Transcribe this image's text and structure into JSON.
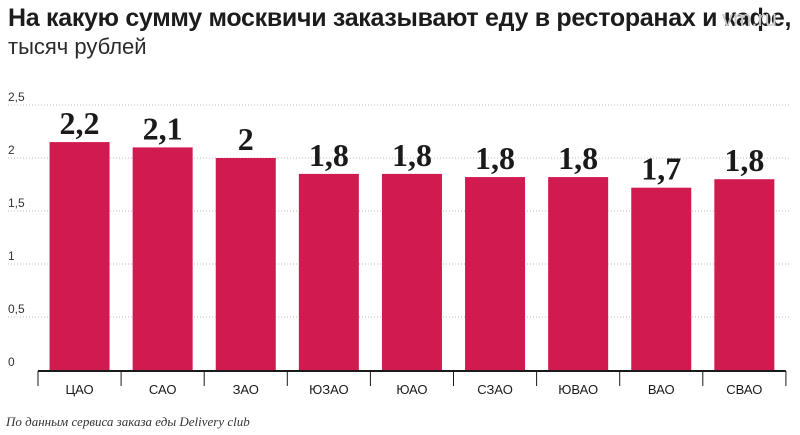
{
  "header": {
    "title": "На какую сумму москвичи заказывают еду в ресторанах и кафе,",
    "subtitle": "тысяч рублей",
    "watermark": "vm.ru"
  },
  "footer": {
    "source": "По данным сервиса заказа еды Delivery club"
  },
  "colors": {
    "bar": "#d11a4f",
    "grid": "#bdbdbd",
    "axis": "#1a1a1a"
  },
  "chart_data": {
    "type": "bar",
    "categories": [
      "ЦАО",
      "САО",
      "ЗАО",
      "ЮЗАО",
      "ЮАО",
      "СЗАО",
      "ЮВАО",
      "ВАО",
      "СВАО"
    ],
    "values": [
      2.2,
      2.1,
      2,
      1.8,
      1.8,
      1.8,
      1.8,
      1.7,
      1.8
    ],
    "value_labels": [
      "2,2",
      "2,1",
      "2",
      "1,8",
      "1,8",
      "1,8",
      "1,8",
      "1,7",
      "1,8"
    ],
    "plotted_values": [
      2.15,
      2.1,
      2.0,
      1.85,
      1.85,
      1.82,
      1.82,
      1.72,
      1.8
    ],
    "yticks": [
      0,
      0.5,
      1,
      1.5,
      2,
      2.5
    ],
    "ytick_labels": [
      "0",
      "0,5",
      "1",
      "1,5",
      "2",
      "2,5"
    ],
    "ylim": [
      0,
      2.5
    ],
    "grid": true,
    "xlabel": "",
    "ylabel": ""
  }
}
